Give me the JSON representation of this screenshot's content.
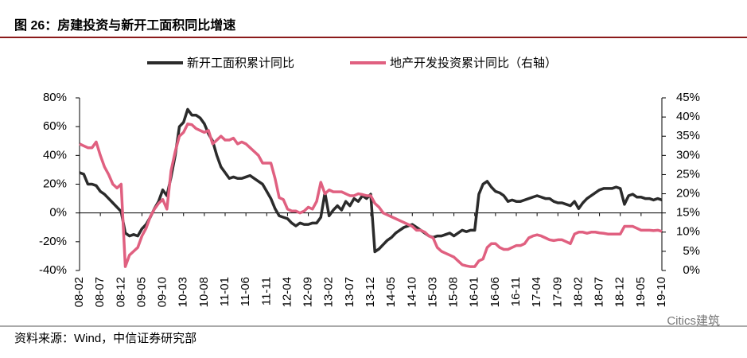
{
  "header": {
    "title": "图 26：房建投资与新开工面积同比增速"
  },
  "footer": {
    "source": "资料来源：Wind，中信证券研究部",
    "watermark": "Citics建筑"
  },
  "chart_data": {
    "type": "line",
    "categories": [
      "08-02",
      null,
      null,
      null,
      null,
      "08-07",
      null,
      null,
      null,
      null,
      "08-12",
      null,
      null,
      null,
      null,
      "09-05",
      null,
      null,
      null,
      null,
      "09-10",
      null,
      null,
      null,
      null,
      "10-03",
      null,
      null,
      null,
      null,
      "10-08",
      null,
      null,
      null,
      null,
      "11-01",
      null,
      null,
      null,
      null,
      "11-06",
      null,
      null,
      null,
      null,
      "11-11",
      null,
      null,
      null,
      null,
      "12-04",
      null,
      null,
      null,
      null,
      "12-09",
      null,
      null,
      null,
      null,
      "13-02",
      null,
      null,
      null,
      null,
      "13-07",
      null,
      null,
      null,
      null,
      "13-12",
      null,
      null,
      null,
      null,
      "14-05",
      null,
      null,
      null,
      null,
      "14-10",
      null,
      null,
      null,
      null,
      "15-03",
      null,
      null,
      null,
      null,
      "15-08",
      null,
      null,
      null,
      null,
      "16-01",
      null,
      null,
      null,
      null,
      "16-06",
      null,
      null,
      null,
      null,
      "16-11",
      null,
      null,
      null,
      null,
      "17-04",
      null,
      null,
      null,
      null,
      "17-09",
      null,
      null,
      null,
      null,
      "18-02",
      null,
      null,
      null,
      null,
      "18-07",
      null,
      null,
      null,
      null,
      "18-12",
      null,
      null,
      null,
      null,
      "19-05",
      null,
      null,
      null,
      null,
      "19-10"
    ],
    "series": [
      {
        "name": "新开工面积累计同比",
        "color": "#2b2b2b",
        "axis": "y",
        "values": [
          28,
          27,
          20,
          20,
          19,
          15,
          13,
          10,
          7,
          4,
          1,
          -14,
          -16,
          -15,
          -16,
          -11,
          -8,
          -3,
          3,
          8,
          16,
          12,
          25,
          40,
          60,
          63,
          72,
          68,
          68,
          66,
          62,
          55,
          50,
          40,
          32,
          28,
          24,
          25,
          24,
          24,
          25,
          26,
          24,
          22,
          20,
          15,
          10,
          3,
          -2,
          -3,
          -4,
          -7,
          -9,
          -7,
          -8,
          -8,
          -7,
          -7,
          -3,
          14,
          -2,
          2,
          5,
          2,
          8,
          5,
          10,
          8,
          12,
          10,
          13,
          -27,
          -25,
          -22,
          -19,
          -17,
          -14,
          -12,
          -10,
          -9,
          -8,
          -10,
          -12,
          -14,
          -16,
          -17,
          -16,
          -16,
          -15,
          -14,
          -16,
          -14,
          -12,
          -13,
          -12,
          -12,
          13,
          20,
          22,
          18,
          15,
          14,
          12,
          8,
          9,
          8,
          8,
          9,
          10,
          11,
          12,
          11,
          10,
          10,
          8,
          7,
          7,
          6,
          5,
          8,
          3,
          7,
          10,
          12,
          14,
          16,
          17,
          17,
          17,
          18,
          17,
          6,
          12,
          13,
          11,
          11,
          10,
          10,
          9,
          10,
          9
        ]
      },
      {
        "name": "地产开发投资累计同比（右轴）",
        "color": "#e06080",
        "axis": "y2",
        "values": [
          33,
          32.5,
          32,
          32,
          33.5,
          30,
          27,
          25,
          22.5,
          21.5,
          22.5,
          1,
          4,
          5,
          6,
          9,
          11,
          14,
          16,
          17.5,
          18.5,
          16,
          26,
          31,
          35,
          36,
          38.2,
          38,
          37,
          36.5,
          36,
          36.5,
          33,
          34,
          35,
          34,
          34,
          34.5,
          33,
          33.5,
          33,
          32,
          31,
          30,
          28,
          28,
          28,
          24,
          19,
          18.5,
          16,
          15.5,
          15.5,
          15,
          15.5,
          16.5,
          16,
          18,
          23,
          20,
          21,
          20.5,
          20.5,
          20.5,
          20,
          19.5,
          19.5,
          20,
          19.8,
          19.5,
          19.5,
          17.5,
          16.5,
          15,
          14.5,
          14,
          13.5,
          13,
          12.5,
          12,
          11.5,
          10.5,
          10.5,
          10,
          9,
          8.5,
          6,
          5,
          4.5,
          4,
          3.5,
          2.5,
          1.5,
          1.2,
          1,
          1,
          2.5,
          3,
          6,
          7,
          7,
          6,
          5.5,
          5.5,
          6,
          6.5,
          6.5,
          7,
          8.5,
          9,
          9.3,
          9,
          8.5,
          8,
          7.8,
          8,
          8,
          7.5,
          7,
          9.5,
          10,
          10,
          9.7,
          10,
          10,
          9.8,
          9.7,
          9.5,
          9.5,
          9.5,
          9.5,
          11.5,
          11.5,
          11.5,
          11,
          10.5,
          10.5,
          10.5,
          10.4,
          10.5,
          10.2
        ]
      }
    ],
    "ylim": [
      -40,
      80
    ],
    "yticks": [
      {
        "value": -40,
        "label": "-40%"
      },
      {
        "value": -20,
        "label": "-20%"
      },
      {
        "value": 0,
        "label": "0%"
      },
      {
        "value": 20,
        "label": "20%"
      },
      {
        "value": 40,
        "label": "40%"
      },
      {
        "value": 60,
        "label": "60%"
      },
      {
        "value": 80,
        "label": "80%"
      }
    ],
    "y2lim": [
      0,
      45
    ],
    "y2ticks": [
      {
        "value": 0,
        "label": "0%"
      },
      {
        "value": 5,
        "label": "5%"
      },
      {
        "value": 10,
        "label": "10%"
      },
      {
        "value": 15,
        "label": "15%"
      },
      {
        "value": 20,
        "label": "20%"
      },
      {
        "value": 25,
        "label": "25%"
      },
      {
        "value": 30,
        "label": "30%"
      },
      {
        "value": 35,
        "label": "35%"
      },
      {
        "value": 40,
        "label": "40%"
      },
      {
        "value": 45,
        "label": "45%"
      }
    ],
    "legend": "top"
  }
}
